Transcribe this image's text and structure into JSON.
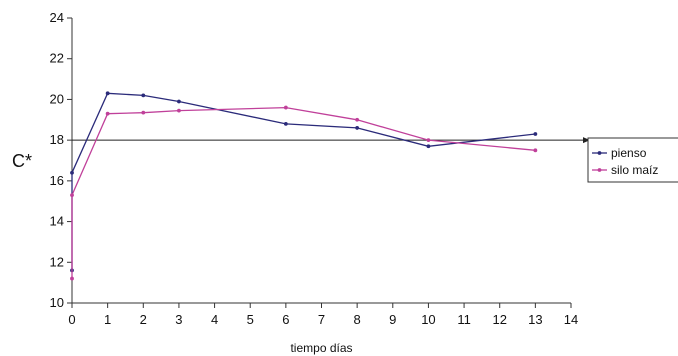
{
  "chart_data": {
    "type": "line",
    "title": "",
    "xlabel": "tiempo días",
    "ylabel": "C*",
    "xlim": [
      0,
      14
    ],
    "ylim": [
      10,
      24
    ],
    "x_ticks": [
      "0",
      "1",
      "2",
      "3",
      "4",
      "5",
      "6",
      "7",
      "8",
      "9",
      "10",
      "11",
      "12",
      "13",
      "14"
    ],
    "y_ticks": [
      "10",
      "12",
      "14",
      "16",
      "18",
      "20",
      "22",
      "24"
    ],
    "grid": false,
    "reference_line": {
      "y": 18
    },
    "legend_position": "right",
    "series": [
      {
        "name": "pienso",
        "color": "#2b2b7a",
        "x": [
          0,
          0,
          1,
          2,
          3,
          6,
          8,
          10,
          13
        ],
        "y": [
          11.6,
          16.4,
          20.3,
          20.2,
          19.9,
          18.8,
          18.6,
          17.7,
          18.3
        ]
      },
      {
        "name": "silo maíz",
        "color": "#c0409a",
        "x": [
          0,
          0,
          1,
          2,
          3,
          6,
          8,
          10,
          13
        ],
        "y": [
          11.2,
          15.3,
          19.3,
          19.35,
          19.45,
          19.6,
          19.0,
          18.0,
          17.5
        ]
      }
    ]
  }
}
